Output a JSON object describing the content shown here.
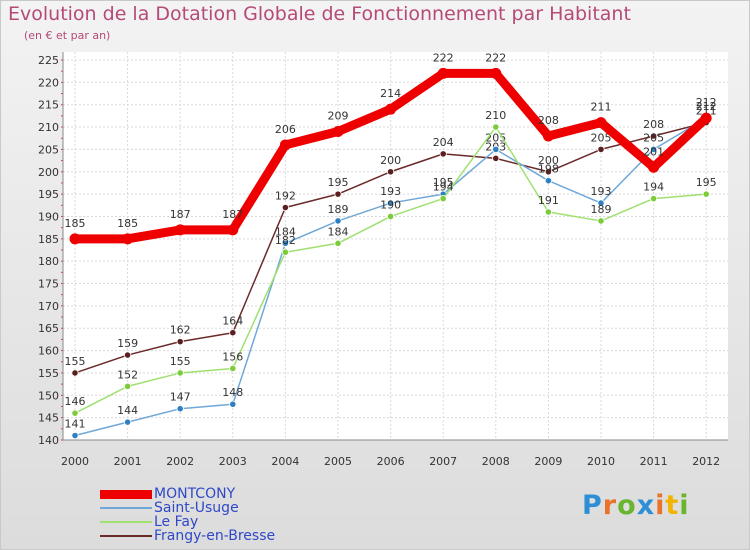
{
  "title": "Evolution de la Dotation Globale de Fonctionnement par Habitant",
  "subtitle": "(en € et par an)",
  "logo": {
    "text": "Proxiti",
    "colors": [
      "#2e8fd6",
      "#e8732b",
      "#69b52e",
      "#2e8fd6",
      "#e8732b",
      "#f1b400",
      "#69b52e"
    ]
  },
  "legend": [
    {
      "label": "MONTCONY",
      "color": "#ee0000"
    },
    {
      "label": "Saint-Usuge",
      "color": "#5b9bd5"
    },
    {
      "label": "Le Fay",
      "color": "#8ddb5a"
    },
    {
      "label": "Frangy-en-Bresse",
      "color": "#6b2a2a"
    }
  ],
  "chart_data": {
    "type": "line",
    "title": "Evolution de la Dotation Globale de Fonctionnement par Habitant",
    "subtitle": "(en € et par an)",
    "xlabel": "",
    "ylabel": "",
    "x": [
      2000,
      2001,
      2002,
      2003,
      2004,
      2005,
      2006,
      2007,
      2008,
      2009,
      2010,
      2011,
      2012
    ],
    "ylim": [
      140,
      225
    ],
    "yticks": [
      140,
      145,
      150,
      155,
      160,
      165,
      170,
      175,
      180,
      185,
      190,
      195,
      200,
      205,
      210,
      215,
      220,
      225
    ],
    "grid": true,
    "legend_position": "bottom-left",
    "series": [
      {
        "name": "Frangy-en-Bresse",
        "color": "#6b2a2a",
        "point": "#5c1f1f",
        "values": [
          155,
          159,
          162,
          164,
          192,
          195,
          200,
          204,
          203,
          200,
          205,
          208,
          211
        ]
      },
      {
        "name": "Saint-Usuge",
        "color": "#6fa8d8",
        "point": "#2f7fc4",
        "values": [
          141,
          144,
          147,
          148,
          184,
          189,
          193,
          195,
          205,
          198,
          193,
          205,
          212
        ]
      },
      {
        "name": "Le Fay",
        "color": "#9fe070",
        "point": "#7ccc3a",
        "values": [
          146,
          152,
          155,
          156,
          182,
          184,
          190,
          194,
          210,
          191,
          189,
          194,
          195
        ]
      },
      {
        "name": "MONTCONY",
        "color": "#ee0000",
        "point": "#ee0000",
        "values": [
          185,
          185,
          187,
          187,
          206,
          209,
          214,
          222,
          222,
          208,
          211,
          201,
          212
        ]
      }
    ]
  }
}
